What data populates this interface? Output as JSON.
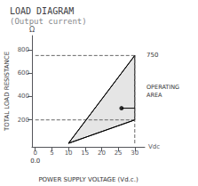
{
  "chart_data": {
    "type": "line",
    "title": "LOAD DIAGRAM",
    "subtitle": "(Output current)",
    "x_label": "POWER SUPPLY VOLTAGE (Vd.c.)",
    "y_label": "TOTAL LOAD RESISTANCE",
    "xlim": [
      -1,
      33
    ],
    "ylim": [
      -30,
      920
    ],
    "xticks": [
      0,
      5,
      10,
      15,
      20,
      25,
      30
    ],
    "yticks": [
      200,
      400,
      600,
      800
    ],
    "grid": false,
    "legend": false,
    "series": [
      {
        "type": "polygon",
        "x": [
          10,
          30,
          30,
          10
        ],
        "values": [
          0,
          750,
          200,
          0
        ],
        "color": "#000000"
      },
      {
        "type": "line",
        "line_style": "dashed",
        "color": "#666666",
        "x": [
          0,
          30
        ],
        "values": [
          750,
          750
        ]
      },
      {
        "type": "line",
        "line_style": "dashed",
        "color": "#666666",
        "x": [
          0,
          30
        ],
        "values": [
          200,
          200
        ]
      },
      {
        "type": "line",
        "line_style": "dashed",
        "color": "#666666",
        "x": [
          30,
          30
        ],
        "values": [
          0,
          750
        ]
      },
      {
        "type": "line",
        "line_style": "solid",
        "color": "#000000",
        "x": [
          10,
          30
        ],
        "values": [
          0,
          750
        ]
      },
      {
        "type": "line",
        "line_style": "solid",
        "color": "#000000",
        "x": [
          10,
          30
        ],
        "values": [
          0,
          200
        ]
      },
      {
        "type": "line",
        "line_style": "solid",
        "color": "#000000",
        "x": [
          26,
          30
        ],
        "values": [
          300,
          300
        ]
      },
      {
        "type": "scatter",
        "marker": "circle",
        "color": "#000000",
        "x": [
          26
        ],
        "values": [
          300
        ]
      }
    ],
    "annotations": [
      {
        "text": "Ω"
      },
      {
        "text": "Vdc"
      },
      {
        "text": "750",
        "y": 750
      },
      {
        "text": "0.0",
        "x": 0
      },
      {
        "text": "OPERATING\nAREA"
      }
    ]
  }
}
